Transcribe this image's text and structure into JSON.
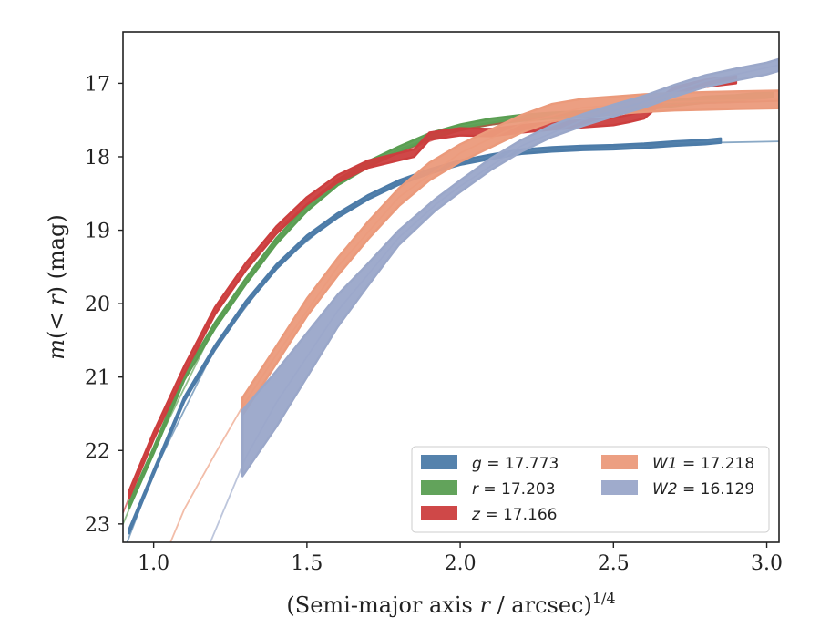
{
  "chart_data": {
    "type": "line",
    "xlabel": "(Semi-major axis r / arcsec)",
    "xlabel_italic": "r",
    "xlabel_superscript": "1/4",
    "ylabel": "m(< r) (mag)",
    "xlim": [
      0.9,
      3.04
    ],
    "ylim": [
      23.25,
      16.3
    ],
    "y_inverted": true,
    "xticks": [
      1.0,
      1.5,
      2.0,
      2.5,
      3.0
    ],
    "xtick_labels": [
      "1.0",
      "1.5",
      "2.0",
      "2.5",
      "3.0"
    ],
    "yticks": [
      17,
      18,
      19,
      20,
      21,
      22,
      23
    ],
    "ytick_labels": [
      "17",
      "18",
      "19",
      "20",
      "21",
      "22",
      "23"
    ],
    "grid": false,
    "legend_position": "bottom-right",
    "series": [
      {
        "name": "g = 17.773",
        "sym": "g",
        "eq": " = 17.773",
        "color": "#4c7ba8",
        "data": [
          [
            0.92,
            23.1
          ],
          [
            1.0,
            22.3
          ],
          [
            1.1,
            21.3
          ],
          [
            1.2,
            20.6
          ],
          [
            1.3,
            20.0
          ],
          [
            1.4,
            19.5
          ],
          [
            1.5,
            19.1
          ],
          [
            1.6,
            18.8
          ],
          [
            1.7,
            18.55
          ],
          [
            1.8,
            18.35
          ],
          [
            1.9,
            18.2
          ],
          [
            2.0,
            18.08
          ],
          [
            2.1,
            18.0
          ],
          [
            2.2,
            17.93
          ],
          [
            2.3,
            17.9
          ],
          [
            2.4,
            17.88
          ],
          [
            2.5,
            17.87
          ],
          [
            2.6,
            17.85
          ],
          [
            2.7,
            17.82
          ],
          [
            2.8,
            17.8
          ],
          [
            2.85,
            17.78
          ]
        ],
        "band": 0.03,
        "model": [
          [
            0.9,
            23.4
          ],
          [
            1.0,
            22.3
          ],
          [
            1.2,
            20.6
          ],
          [
            1.4,
            19.5
          ],
          [
            1.6,
            18.8
          ],
          [
            1.8,
            18.35
          ],
          [
            2.0,
            18.08
          ],
          [
            2.2,
            17.95
          ],
          [
            2.4,
            17.88
          ],
          [
            2.6,
            17.84
          ],
          [
            2.8,
            17.81
          ],
          [
            3.04,
            17.79
          ]
        ]
      },
      {
        "name": "r = 17.203",
        "sym": "r",
        "eq": " = 17.203",
        "color": "#5a9e52",
        "data": [
          [
            0.92,
            22.75
          ],
          [
            1.0,
            22.0
          ],
          [
            1.1,
            21.0
          ],
          [
            1.2,
            20.3
          ],
          [
            1.3,
            19.7
          ],
          [
            1.4,
            19.15
          ],
          [
            1.5,
            18.7
          ],
          [
            1.6,
            18.35
          ],
          [
            1.7,
            18.1
          ],
          [
            1.8,
            17.9
          ],
          [
            1.9,
            17.72
          ],
          [
            2.0,
            17.6
          ],
          [
            2.1,
            17.52
          ],
          [
            2.2,
            17.47
          ],
          [
            2.3,
            17.44
          ],
          [
            2.4,
            17.42
          ],
          [
            2.5,
            17.38
          ],
          [
            2.6,
            17.32
          ],
          [
            2.7,
            17.27
          ],
          [
            2.8,
            17.22
          ],
          [
            2.9,
            17.2
          ],
          [
            3.02,
            17.15
          ]
        ],
        "band": 0.04,
        "model": [
          [
            0.9,
            23.0
          ],
          [
            1.0,
            22.0
          ],
          [
            1.2,
            20.3
          ],
          [
            1.4,
            19.15
          ],
          [
            1.6,
            18.35
          ],
          [
            1.8,
            17.9
          ],
          [
            2.0,
            17.6
          ],
          [
            2.2,
            17.47
          ],
          [
            2.4,
            17.4
          ],
          [
            2.6,
            17.33
          ],
          [
            2.8,
            17.27
          ],
          [
            3.04,
            17.24
          ]
        ]
      },
      {
        "name": "z = 17.166",
        "sym": "z",
        "eq": " = 17.166",
        "color": "#cc3e3e",
        "data": [
          [
            0.92,
            22.6
          ],
          [
            1.0,
            21.8
          ],
          [
            1.1,
            20.9
          ],
          [
            1.2,
            20.1
          ],
          [
            1.3,
            19.5
          ],
          [
            1.4,
            19.0
          ],
          [
            1.5,
            18.6
          ],
          [
            1.6,
            18.3
          ],
          [
            1.7,
            18.1
          ],
          [
            1.8,
            18.0
          ],
          [
            1.85,
            17.95
          ],
          [
            1.9,
            17.72
          ],
          [
            2.0,
            17.66
          ],
          [
            2.1,
            17.67
          ],
          [
            2.2,
            17.62
          ],
          [
            2.3,
            17.58
          ],
          [
            2.4,
            17.55
          ],
          [
            2.5,
            17.52
          ],
          [
            2.55,
            17.48
          ],
          [
            2.6,
            17.43
          ],
          [
            2.65,
            17.25
          ],
          [
            2.7,
            17.1
          ],
          [
            2.8,
            17.0
          ],
          [
            2.9,
            16.95
          ]
        ],
        "band": 0.05,
        "model": [
          [
            0.9,
            22.85
          ],
          [
            1.0,
            21.8
          ],
          [
            1.2,
            20.1
          ],
          [
            1.4,
            19.0
          ],
          [
            1.6,
            18.3
          ],
          [
            1.8,
            17.95
          ],
          [
            2.0,
            17.63
          ],
          [
            2.2,
            17.5
          ],
          [
            2.4,
            17.4
          ],
          [
            2.6,
            17.32
          ],
          [
            2.8,
            17.27
          ],
          [
            3.04,
            17.24
          ]
        ]
      },
      {
        "name": "W1 = 17.218",
        "sym": "W1",
        "eq": " = 17.218",
        "color": "#eb9a7b",
        "data": [
          [
            1.29,
            21.4
          ],
          [
            1.4,
            20.7
          ],
          [
            1.5,
            20.05
          ],
          [
            1.6,
            19.5
          ],
          [
            1.7,
            19.0
          ],
          [
            1.8,
            18.55
          ],
          [
            1.9,
            18.2
          ],
          [
            2.0,
            17.95
          ],
          [
            2.1,
            17.75
          ],
          [
            2.2,
            17.55
          ],
          [
            2.3,
            17.4
          ],
          [
            2.4,
            17.33
          ],
          [
            2.5,
            17.3
          ],
          [
            2.6,
            17.27
          ],
          [
            2.7,
            17.25
          ],
          [
            2.8,
            17.24
          ],
          [
            2.9,
            17.23
          ],
          [
            3.04,
            17.22
          ]
        ],
        "band": 0.12,
        "model": [
          [
            1.05,
            23.3
          ],
          [
            1.1,
            22.8
          ],
          [
            1.2,
            22.05
          ],
          [
            1.29,
            21.4
          ],
          [
            1.4,
            20.7
          ],
          [
            1.6,
            19.5
          ],
          [
            1.8,
            18.55
          ],
          [
            2.0,
            17.95
          ],
          [
            2.2,
            17.55
          ],
          [
            2.4,
            17.33
          ],
          [
            2.6,
            17.27
          ],
          [
            2.8,
            17.24
          ],
          [
            3.04,
            17.22
          ]
        ]
      },
      {
        "name": "W2 = 16.129",
        "sym": "W2",
        "eq": " = 16.129",
        "color": "#9aa7c9",
        "data": [
          [
            1.29,
            21.9
          ],
          [
            1.4,
            21.3
          ],
          [
            1.5,
            20.7
          ],
          [
            1.6,
            20.1
          ],
          [
            1.7,
            19.6
          ],
          [
            1.8,
            19.1
          ],
          [
            1.92,
            18.65
          ],
          [
            2.0,
            18.4
          ],
          [
            2.1,
            18.1
          ],
          [
            2.2,
            17.85
          ],
          [
            2.3,
            17.65
          ],
          [
            2.4,
            17.5
          ],
          [
            2.5,
            17.37
          ],
          [
            2.6,
            17.25
          ],
          [
            2.7,
            17.1
          ],
          [
            2.8,
            16.97
          ],
          [
            2.9,
            16.88
          ],
          [
            3.0,
            16.8
          ],
          [
            3.04,
            16.75
          ]
        ],
        "band_list": [
          0.45,
          0.38,
          0.3,
          0.22,
          0.15,
          0.1,
          0.08,
          0.08,
          0.08,
          0.08,
          0.08,
          0.08,
          0.08,
          0.08,
          0.08,
          0.08,
          0.08,
          0.08,
          0.08
        ],
        "model": [
          [
            1.18,
            23.3
          ],
          [
            1.3,
            22.1
          ],
          [
            1.4,
            21.35
          ],
          [
            1.6,
            20.1
          ],
          [
            1.8,
            19.1
          ],
          [
            1.92,
            18.65
          ],
          [
            2.0,
            18.4
          ],
          [
            2.2,
            17.85
          ],
          [
            2.4,
            17.5
          ],
          [
            2.6,
            17.25
          ],
          [
            2.8,
            16.97
          ],
          [
            3.04,
            16.75
          ]
        ]
      }
    ]
  }
}
